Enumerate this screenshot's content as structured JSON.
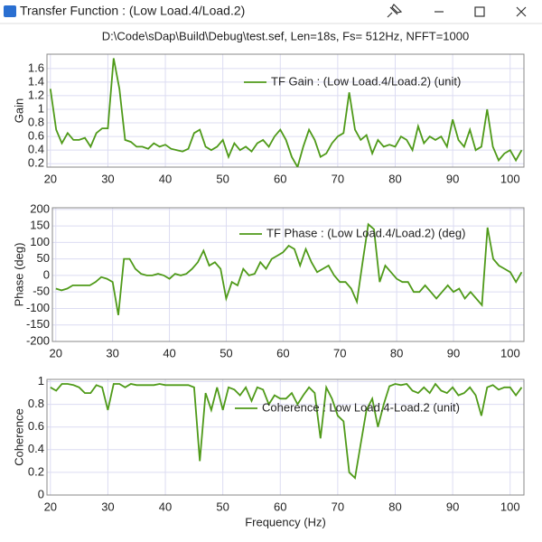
{
  "window": {
    "title": "Transfer Function : (Low Load.4/Load.2)",
    "subtitle": "D:\\Code\\sDap\\Build\\Debug\\test.sef, Len=18s, Fs= 512Hz, NFFT=1000"
  },
  "chart_data": [
    {
      "type": "line",
      "ylabel": "Gain",
      "x": [
        20,
        21,
        22,
        23,
        24,
        25,
        26,
        27,
        28,
        29,
        30,
        31,
        32,
        33,
        34,
        35,
        36,
        37,
        38,
        39,
        40,
        41,
        42,
        43,
        44,
        45,
        46,
        47,
        48,
        49,
        50,
        51,
        52,
        53,
        54,
        55,
        56,
        57,
        58,
        59,
        60,
        61,
        62,
        63,
        64,
        65,
        66,
        67,
        68,
        69,
        70,
        71,
        72,
        73,
        74,
        75,
        76,
        77,
        78,
        79,
        80,
        81,
        82,
        83,
        84,
        85,
        86,
        87,
        88,
        89,
        90,
        91,
        92,
        93,
        94,
        95,
        96,
        97,
        98,
        99,
        100,
        101,
        102
      ],
      "series": [
        {
          "name": "TF Gain : (Low Load.4/Load.2) (unit)",
          "color": "#4f9a19",
          "values": [
            1.3,
            0.7,
            0.5,
            0.65,
            0.55,
            0.55,
            0.58,
            0.45,
            0.65,
            0.72,
            0.72,
            1.75,
            1.3,
            0.55,
            0.52,
            0.45,
            0.45,
            0.42,
            0.5,
            0.45,
            0.48,
            0.42,
            0.4,
            0.38,
            0.42,
            0.65,
            0.7,
            0.45,
            0.4,
            0.45,
            0.55,
            0.3,
            0.5,
            0.4,
            0.45,
            0.38,
            0.5,
            0.55,
            0.45,
            0.6,
            0.7,
            0.55,
            0.3,
            0.15,
            0.45,
            0.7,
            0.55,
            0.3,
            0.35,
            0.5,
            0.6,
            0.65,
            1.25,
            0.7,
            0.55,
            0.62,
            0.35,
            0.55,
            0.45,
            0.48,
            0.45,
            0.6,
            0.55,
            0.4,
            0.75,
            0.5,
            0.6,
            0.55,
            0.6,
            0.45,
            0.85,
            0.55,
            0.45,
            0.7,
            0.4,
            0.45,
            1.0,
            0.45,
            0.25,
            0.35,
            0.4,
            0.25,
            0.4
          ]
        }
      ],
      "xlim": [
        19.4,
        102.4
      ],
      "xticks": [
        20,
        30,
        40,
        50,
        60,
        70,
        80,
        90,
        100
      ],
      "ylim": [
        0.15,
        1.81
      ],
      "yticks": [
        0.2,
        0.4,
        0.6,
        0.8,
        1,
        1.2,
        1.4,
        1.6
      ],
      "grid": true
    },
    {
      "type": "line",
      "ylabel": "Phase (deg)",
      "x": [
        20,
        21,
        22,
        23,
        24,
        25,
        26,
        27,
        28,
        29,
        30,
        31,
        32,
        33,
        34,
        35,
        36,
        37,
        38,
        39,
        40,
        41,
        42,
        43,
        44,
        45,
        46,
        47,
        48,
        49,
        50,
        51,
        52,
        53,
        54,
        55,
        56,
        57,
        58,
        59,
        60,
        61,
        62,
        63,
        64,
        65,
        66,
        67,
        68,
        69,
        70,
        71,
        72,
        73,
        74,
        75,
        76,
        77,
        78,
        79,
        80,
        81,
        82,
        83,
        84,
        85,
        86,
        87,
        88,
        89,
        90,
        91,
        92,
        93,
        94,
        95,
        96,
        97,
        98,
        99,
        100,
        101,
        102
      ],
      "series": [
        {
          "name": "TF Phase : (Low Load.4/Load.2) (deg)",
          "color": "#4f9a19",
          "values": [
            -40,
            -45,
            -40,
            -30,
            -30,
            -30,
            -30,
            -20,
            -5,
            -10,
            -20,
            -120,
            50,
            50,
            20,
            5,
            0,
            0,
            5,
            0,
            -10,
            5,
            0,
            5,
            20,
            40,
            75,
            30,
            40,
            20,
            -70,
            -20,
            -30,
            20,
            0,
            5,
            40,
            20,
            50,
            60,
            70,
            90,
            80,
            30,
            80,
            40,
            10,
            20,
            30,
            0,
            -20,
            -20,
            -40,
            -80,
            40,
            155,
            140,
            -20,
            30,
            10,
            -10,
            -20,
            -20,
            -50,
            -50,
            -30,
            -50,
            -70,
            -50,
            -30,
            -50,
            -40,
            -70,
            -50,
            -70,
            -90,
            145,
            50,
            30,
            20,
            10,
            -20,
            10
          ]
        }
      ],
      "xlim": [
        19.4,
        102.4
      ],
      "xticks": [
        20,
        30,
        40,
        50,
        60,
        70,
        80,
        90,
        100
      ],
      "ylim": [
        -200,
        205
      ],
      "yticks": [
        -200,
        -150,
        -100,
        -50,
        0,
        50,
        100,
        150,
        200
      ],
      "grid": true
    },
    {
      "type": "line",
      "ylabel": "Coherence",
      "xlabel": "Frequency (Hz)",
      "x": [
        20,
        21,
        22,
        23,
        24,
        25,
        26,
        27,
        28,
        29,
        30,
        31,
        32,
        33,
        34,
        35,
        36,
        37,
        38,
        39,
        40,
        41,
        42,
        43,
        44,
        45,
        46,
        47,
        48,
        49,
        50,
        51,
        52,
        53,
        54,
        55,
        56,
        57,
        58,
        59,
        60,
        61,
        62,
        63,
        64,
        65,
        66,
        67,
        68,
        69,
        70,
        71,
        72,
        73,
        74,
        75,
        76,
        77,
        78,
        79,
        80,
        81,
        82,
        83,
        84,
        85,
        86,
        87,
        88,
        89,
        90,
        91,
        92,
        93,
        94,
        95,
        96,
        97,
        98,
        99,
        100,
        101,
        102
      ],
      "series": [
        {
          "name": "Coherence : Low Load.4-Load.2 (unit)",
          "color": "#4f9a19",
          "values": [
            0.95,
            0.92,
            0.98,
            0.98,
            0.97,
            0.95,
            0.9,
            0.9,
            0.97,
            0.95,
            0.75,
            0.98,
            0.98,
            0.95,
            0.98,
            0.97,
            0.97,
            0.97,
            0.97,
            0.98,
            0.97,
            0.97,
            0.97,
            0.97,
            0.97,
            0.95,
            0.3,
            0.9,
            0.75,
            0.95,
            0.75,
            0.95,
            0.93,
            0.88,
            0.95,
            0.83,
            0.95,
            0.93,
            0.8,
            0.88,
            0.85,
            0.85,
            0.9,
            0.8,
            0.88,
            0.95,
            0.9,
            0.5,
            0.95,
            0.85,
            0.7,
            0.65,
            0.2,
            0.15,
            0.45,
            0.75,
            0.85,
            0.6,
            0.8,
            0.96,
            0.98,
            0.97,
            0.98,
            0.92,
            0.9,
            0.95,
            0.9,
            0.98,
            0.92,
            0.9,
            0.95,
            0.88,
            0.9,
            0.95,
            0.88,
            0.7,
            0.95,
            0.97,
            0.93,
            0.95,
            0.95,
            0.88,
            0.95
          ]
        }
      ],
      "xlim": [
        19.4,
        102.4
      ],
      "xticks": [
        20,
        30,
        40,
        50,
        60,
        70,
        80,
        90,
        100
      ],
      "ylim": [
        0,
        1.02
      ],
      "yticks": [
        0,
        0.2,
        0.4,
        0.6,
        0.8,
        1
      ],
      "grid": true
    }
  ]
}
